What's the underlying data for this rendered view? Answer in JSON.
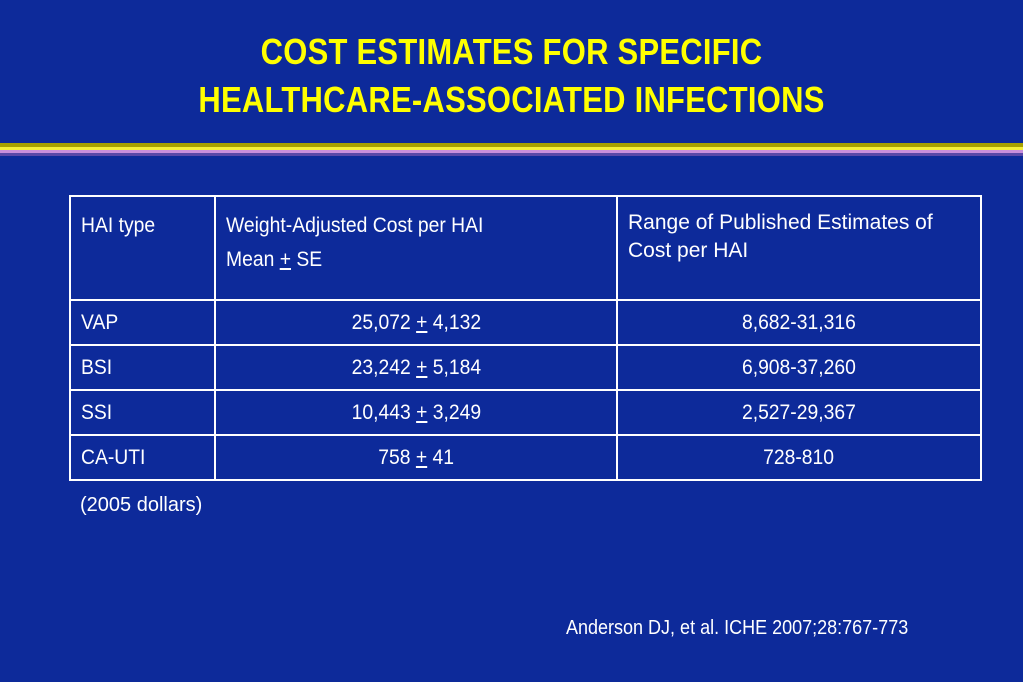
{
  "slide": {
    "title_line1": "COST ESTIMATES FOR SPECIFIC",
    "title_line2": "HEALTHCARE-ASSOCIATED INFECTIONS",
    "colors": {
      "background": "#0d2a9a",
      "title": "#ffff00",
      "text": "#ffffff"
    }
  },
  "table": {
    "headers": {
      "col1": "HAI type",
      "col2_line1": "Weight-Adjusted Cost per HAI",
      "col2_line2_prefix": "Mean ",
      "col2_line2_pm": "+",
      "col2_line2_suffix": " SE",
      "col3": "Range of Published Estimates of Cost per HAI"
    },
    "rows": [
      {
        "type": "VAP",
        "mean": "25,072 ",
        "pm": "+",
        "se": " 4,132",
        "range": "8,682-31,316"
      },
      {
        "type": "BSI",
        "mean": "23,242 ",
        "pm": "+",
        "se": " 5,184",
        "range": "6,908-37,260"
      },
      {
        "type": "SSI",
        "mean": "10,443 ",
        "pm": "+",
        "se": " 3,249",
        "range": "2,527-29,367"
      },
      {
        "type": "CA-UTI",
        "mean": "758 ",
        "pm": "+",
        "se": " 41",
        "range": "728-810"
      }
    ]
  },
  "note": "(2005 dollars)",
  "citation": "Anderson DJ, et al.  ICHE 2007;28:767-773"
}
